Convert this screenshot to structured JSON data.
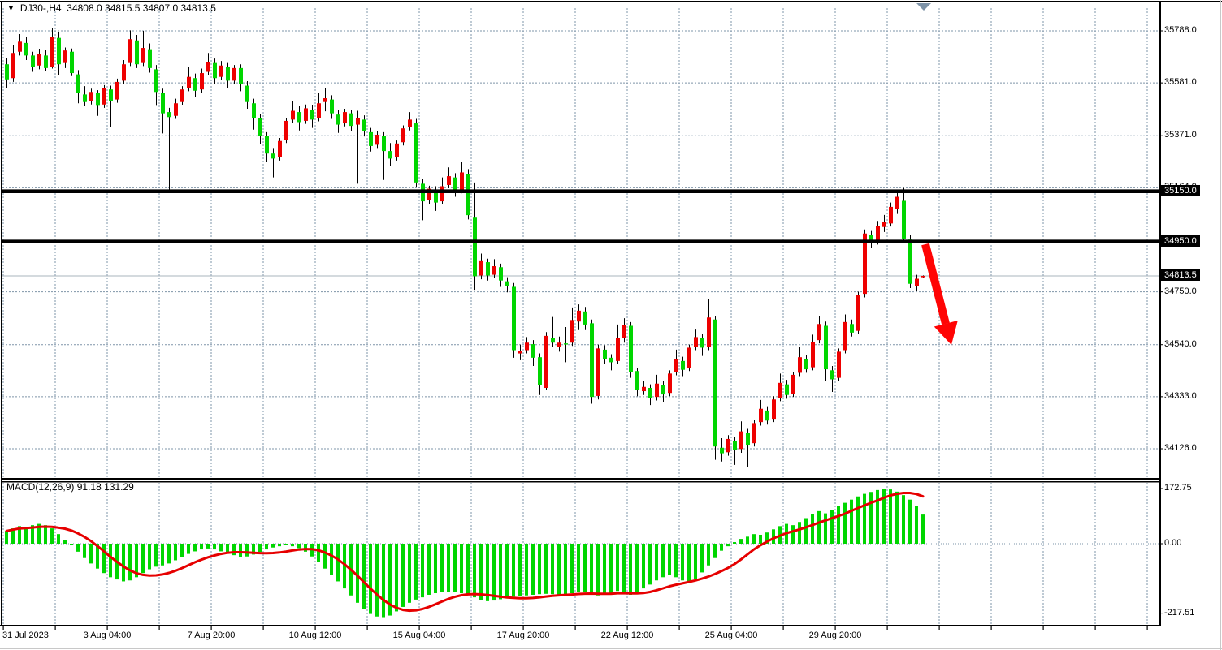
{
  "title": {
    "symbol_timeframe": "DJ30-,H4",
    "open": "34808.0",
    "high": "34815.5",
    "low": "34807.0",
    "close": "34813.5"
  },
  "macd_label": {
    "name": "MACD(12,26,9)",
    "macd_value": "91.18",
    "signal_value": "131.29"
  },
  "price_axis": {
    "ticks": [
      {
        "label": "35788.0",
        "value": 35788.0
      },
      {
        "label": "35581.0",
        "value": 35581.0
      },
      {
        "label": "35371.0",
        "value": 35371.0
      },
      {
        "label": "35164.0",
        "value": 35164.0
      },
      {
        "label": "34950.0",
        "value": 34950.0
      },
      {
        "label": "34750.0",
        "value": 34750.0
      },
      {
        "label": "34540.0",
        "value": 34540.0
      },
      {
        "label": "34333.0",
        "value": 34333.0
      },
      {
        "label": "34126.0",
        "value": 34126.0
      }
    ],
    "boxed_labels": [
      {
        "label": "35150.0",
        "value": 35150.0
      },
      {
        "label": "34950.0",
        "value": 34950.0
      },
      {
        "label": "34813.5",
        "value": 34813.5
      }
    ]
  },
  "macd_axis": {
    "ticks": [
      {
        "label": "172.75",
        "value": 172.75
      },
      {
        "label": "0.00",
        "value": 0.0
      },
      {
        "label": "-217.51",
        "value": -217.51
      }
    ]
  },
  "time_axis": {
    "ticks": [
      "31 Jul 2023",
      "3 Aug 04:00",
      "7 Aug 20:00",
      "10 Aug 12:00",
      "15 Aug 04:00",
      "17 Aug 20:00",
      "22 Aug 12:00",
      "25 Aug 04:00",
      "29 Aug 20:00"
    ]
  },
  "colors": {
    "bull_candle": "#ee0000",
    "bear_candle": "#00d600",
    "wick": "#000000",
    "grid": "#7e94a8",
    "macd_histogram": "#00d600",
    "macd_signal": "#e60000",
    "level_line": "#000000",
    "current_price_line": "#aab4be",
    "annotation_arrow": "#ff0404",
    "scroll_marker": "#7e93a8"
  },
  "chart_data": {
    "type": "candlestick",
    "symbol": "DJ30-",
    "timeframe": "H4",
    "note": "bullish candles are red, bearish candles are green in this color scheme",
    "horizontal_level_lines": [
      35150.0,
      34950.0
    ],
    "current_price": 34813.5,
    "price_axis_range_shown": [
      34126.0,
      35788.0
    ],
    "macd_axis_range_shown": [
      -217.51,
      172.75
    ],
    "candles_ohlc": [
      [
        35655,
        35680,
        35560,
        35595
      ],
      [
        35600,
        35730,
        35585,
        35700
      ],
      [
        35705,
        35775,
        35690,
        35745
      ],
      [
        35740,
        35765,
        35672,
        35690
      ],
      [
        35690,
        35705,
        35625,
        35645
      ],
      [
        35650,
        35717,
        35635,
        35695
      ],
      [
        35690,
        35712,
        35628,
        35640
      ],
      [
        35645,
        35800,
        35638,
        35765
      ],
      [
        35760,
        35782,
        35612,
        35655
      ],
      [
        35660,
        35722,
        35640,
        35710
      ],
      [
        35705,
        35718,
        35608,
        35620
      ],
      [
        35615,
        35632,
        35500,
        35540
      ],
      [
        35535,
        35568,
        35488,
        35505
      ],
      [
        35510,
        35558,
        35495,
        35545
      ],
      [
        35540,
        35552,
        35450,
        35490
      ],
      [
        35495,
        35572,
        35482,
        35560
      ],
      [
        35555,
        35570,
        35405,
        35510
      ],
      [
        35515,
        35598,
        35502,
        35585
      ],
      [
        35590,
        35672,
        35578,
        35655
      ],
      [
        35660,
        35790,
        35648,
        35755
      ],
      [
        35750,
        35772,
        35640,
        35655
      ],
      [
        35660,
        35788,
        35648,
        35720
      ],
      [
        35715,
        35738,
        35622,
        35640
      ],
      [
        35635,
        35652,
        35490,
        35545
      ],
      [
        35540,
        35558,
        35380,
        35460
      ],
      [
        35465,
        35482,
        35155,
        35445
      ],
      [
        35450,
        35518,
        35438,
        35500
      ],
      [
        35505,
        35568,
        35492,
        35555
      ],
      [
        35560,
        35645,
        35548,
        35605
      ],
      [
        35600,
        35618,
        35525,
        35550
      ],
      [
        35555,
        35638,
        35542,
        35620
      ],
      [
        35625,
        35700,
        35612,
        35665
      ],
      [
        35660,
        35678,
        35575,
        35600
      ],
      [
        35605,
        35668,
        35592,
        35650
      ],
      [
        35645,
        35660,
        35562,
        35590
      ],
      [
        35590,
        35652,
        35575,
        35640
      ],
      [
        35640,
        35655,
        35548,
        35575
      ],
      [
        35570,
        35588,
        35478,
        35505
      ],
      [
        35500,
        35518,
        35395,
        35440
      ],
      [
        35440,
        35458,
        35338,
        35370
      ],
      [
        35370,
        35385,
        35265,
        35300
      ],
      [
        35300,
        35322,
        35205,
        35280
      ],
      [
        35285,
        35362,
        35272,
        35350
      ],
      [
        35355,
        35442,
        35342,
        35430
      ],
      [
        35435,
        35510,
        35422,
        35470
      ],
      [
        35465,
        35488,
        35392,
        35425
      ],
      [
        35430,
        35495,
        35418,
        35480
      ],
      [
        35475,
        35492,
        35402,
        35435
      ],
      [
        35440,
        35540,
        35428,
        35500
      ],
      [
        35505,
        35560,
        35468,
        35520
      ],
      [
        35515,
        35532,
        35438,
        35460
      ],
      [
        35455,
        35472,
        35382,
        35415
      ],
      [
        35420,
        35478,
        35408,
        35465
      ],
      [
        35460,
        35475,
        35388,
        35410
      ],
      [
        35415,
        35470,
        35180,
        35440
      ],
      [
        35435,
        35452,
        35368,
        35390
      ],
      [
        35385,
        35402,
        35308,
        35330
      ],
      [
        35335,
        35388,
        35322,
        35375
      ],
      [
        35370,
        35385,
        35195,
        35310
      ],
      [
        35310,
        35342,
        35252,
        35280
      ],
      [
        35285,
        35352,
        35272,
        35340
      ],
      [
        35345,
        35412,
        35332,
        35400
      ],
      [
        35405,
        35465,
        35392,
        35435
      ],
      [
        35420,
        35438,
        35165,
        35185
      ],
      [
        35180,
        35198,
        35035,
        35110
      ],
      [
        35115,
        35172,
        35098,
        35160
      ],
      [
        35155,
        35170,
        35072,
        35105
      ],
      [
        35110,
        35205,
        35098,
        35170
      ],
      [
        35175,
        35245,
        35162,
        35210
      ],
      [
        35205,
        35222,
        35128,
        35150
      ],
      [
        35155,
        35265,
        35142,
        35225
      ],
      [
        35220,
        35238,
        35038,
        35055
      ],
      [
        35045,
        35185,
        34758,
        34812
      ],
      [
        34815,
        34902,
        34800,
        34872
      ],
      [
        34868,
        34882,
        34795,
        34815
      ],
      [
        34818,
        34880,
        34805,
        34852
      ],
      [
        34848,
        34862,
        34770,
        34795
      ],
      [
        34792,
        34808,
        34748,
        34772
      ],
      [
        34770,
        34785,
        34488,
        34518
      ],
      [
        34505,
        34540,
        34478,
        34515
      ],
      [
        34518,
        34570,
        34505,
        34548
      ],
      [
        34542,
        34558,
        34455,
        34488
      ],
      [
        34490,
        34505,
        34340,
        34378
      ],
      [
        34368,
        34590,
        34360,
        34575
      ],
      [
        34568,
        34650,
        34532,
        34548
      ],
      [
        34530,
        34572,
        34512,
        34548
      ],
      [
        34545,
        34610,
        34470,
        34542
      ],
      [
        34548,
        34688,
        34535,
        34638
      ],
      [
        34632,
        34700,
        34598,
        34675
      ],
      [
        34672,
        34690,
        34598,
        34620
      ],
      [
        34625,
        34640,
        34305,
        34332
      ],
      [
        34336,
        34540,
        34322,
        34525
      ],
      [
        34520,
        34538,
        34462,
        34482
      ],
      [
        34488,
        34502,
        34438,
        34470
      ],
      [
        34475,
        34620,
        34462,
        34565
      ],
      [
        34565,
        34645,
        34548,
        34618
      ],
      [
        34615,
        34630,
        34408,
        34430
      ],
      [
        34435,
        34448,
        34335,
        34360
      ],
      [
        34355,
        34395,
        34340,
        34372
      ],
      [
        34368,
        34382,
        34300,
        34328
      ],
      [
        34332,
        34420,
        34318,
        34385
      ],
      [
        34380,
        34395,
        34310,
        34342
      ],
      [
        34348,
        34438,
        34335,
        34425
      ],
      [
        34430,
        34520,
        34418,
        34482
      ],
      [
        34475,
        34492,
        34415,
        34440
      ],
      [
        34448,
        34540,
        34435,
        34528
      ],
      [
        34532,
        34600,
        34518,
        34570
      ],
      [
        34565,
        34582,
        34495,
        34528
      ],
      [
        34532,
        34722,
        34518,
        34648
      ],
      [
        34640,
        34655,
        34082,
        34135
      ],
      [
        34130,
        34168,
        34075,
        34108
      ],
      [
        34112,
        34180,
        34098,
        34165
      ],
      [
        34158,
        34172,
        34062,
        34120
      ],
      [
        34125,
        34235,
        34110,
        34195
      ],
      [
        34188,
        34205,
        34052,
        34142
      ],
      [
        34148,
        34240,
        34135,
        34228
      ],
      [
        34232,
        34320,
        34218,
        34285
      ],
      [
        34278,
        34295,
        34222,
        34238
      ],
      [
        34245,
        34335,
        34232,
        34322
      ],
      [
        34328,
        34425,
        34315,
        34388
      ],
      [
        34382,
        34400,
        34325,
        34340
      ],
      [
        34345,
        34432,
        34332,
        34420
      ],
      [
        34428,
        34530,
        34415,
        34490
      ],
      [
        34482,
        34498,
        34428,
        34442
      ],
      [
        34450,
        34580,
        34438,
        34552
      ],
      [
        34558,
        34655,
        34545,
        34622
      ],
      [
        34615,
        34632,
        34395,
        34442
      ],
      [
        34438,
        34455,
        34352,
        34402
      ],
      [
        34408,
        34525,
        34395,
        34512
      ],
      [
        34518,
        34660,
        34505,
        34630
      ],
      [
        34622,
        34640,
        34572,
        34588
      ],
      [
        34595,
        34750,
        34582,
        34738
      ],
      [
        34742,
        34998,
        34728,
        34982
      ],
      [
        34978,
        34992,
        34925,
        34945
      ],
      [
        34948,
        35032,
        34938,
        35012
      ],
      [
        35008,
        35056,
        34988,
        35028
      ],
      [
        35022,
        35105,
        35010,
        35088
      ],
      [
        35078,
        35150,
        35060,
        35128
      ],
      [
        35112,
        35163,
        34945,
        34962
      ],
      [
        34958,
        34975,
        34765,
        34782
      ],
      [
        34772,
        34818,
        34755,
        34802
      ],
      [
        34808,
        34815.5,
        34807,
        34813.5
      ]
    ],
    "macd_histogram": [
      40,
      48,
      55,
      52,
      58,
      62,
      58,
      48,
      30,
      12,
      -5,
      -25,
      -45,
      -62,
      -78,
      -92,
      -105,
      -112,
      -118,
      -115,
      -105,
      -92,
      -80,
      -72,
      -68,
      -62,
      -52,
      -42,
      -32,
      -24,
      -18,
      -15,
      -18,
      -24,
      -30,
      -36,
      -42,
      -40,
      -34,
      -26,
      -18,
      -12,
      -8,
      -5,
      -8,
      -14,
      -25,
      -40,
      -58,
      -78,
      -98,
      -118,
      -140,
      -162,
      -185,
      -205,
      -220,
      -228,
      -230,
      -225,
      -212,
      -198,
      -185,
      -175,
      -168,
      -160,
      -155,
      -152,
      -150,
      -152,
      -155,
      -160,
      -168,
      -176,
      -180,
      -178,
      -174,
      -170,
      -166,
      -164,
      -162,
      -160,
      -158,
      -157,
      -158,
      -160,
      -158,
      -155,
      -150,
      -152,
      -158,
      -162,
      -160,
      -155,
      -148,
      -155,
      -160,
      -152,
      -140,
      -128,
      -115,
      -105,
      -98,
      -105,
      -115,
      -120,
      -110,
      -90,
      -68,
      -45,
      -22,
      -8,
      5,
      15,
      22,
      30,
      28,
      35,
      45,
      55,
      62,
      58,
      68,
      80,
      92,
      102,
      95,
      105,
      118,
      128,
      138,
      148,
      156,
      162,
      168,
      172,
      170,
      163,
      152,
      138,
      118,
      91.18
    ],
    "macd_signal_period": 9,
    "annotation_arrow": {
      "direction": "down-right",
      "from_price_area": 34950,
      "color": "#ff0404"
    }
  }
}
